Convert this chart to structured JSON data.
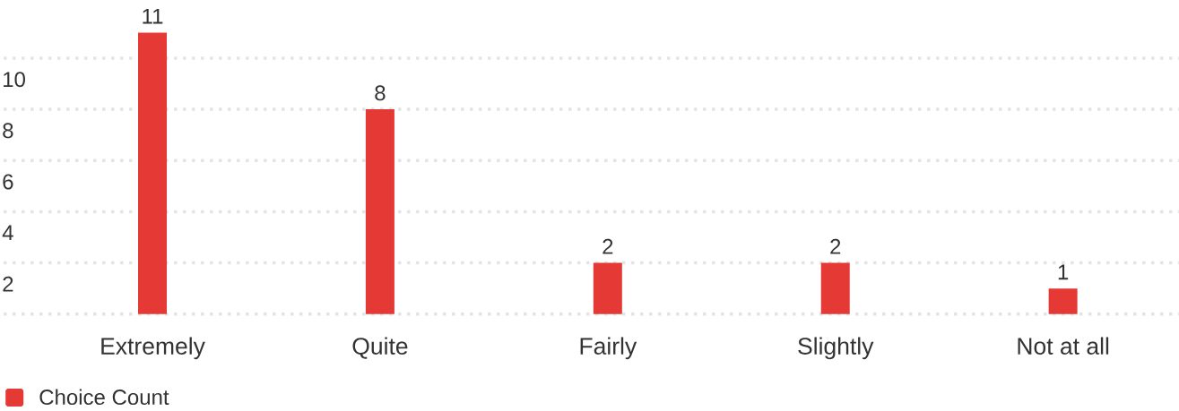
{
  "chart_data": {
    "type": "bar",
    "categories": [
      "Extremely",
      "Quite",
      "Fairly",
      "Slightly",
      "Not at all"
    ],
    "series": [
      {
        "name": "Choice Count",
        "color": "#e53935",
        "values": [
          11,
          8,
          2,
          2,
          1
        ]
      }
    ],
    "ylim": [
      0,
      11
    ],
    "yticks": [
      {
        "value": 0,
        "label": null
      },
      2,
      4,
      6,
      8,
      10
    ],
    "grid": "y",
    "legend": "bottom left",
    "data_labels": true
  }
}
